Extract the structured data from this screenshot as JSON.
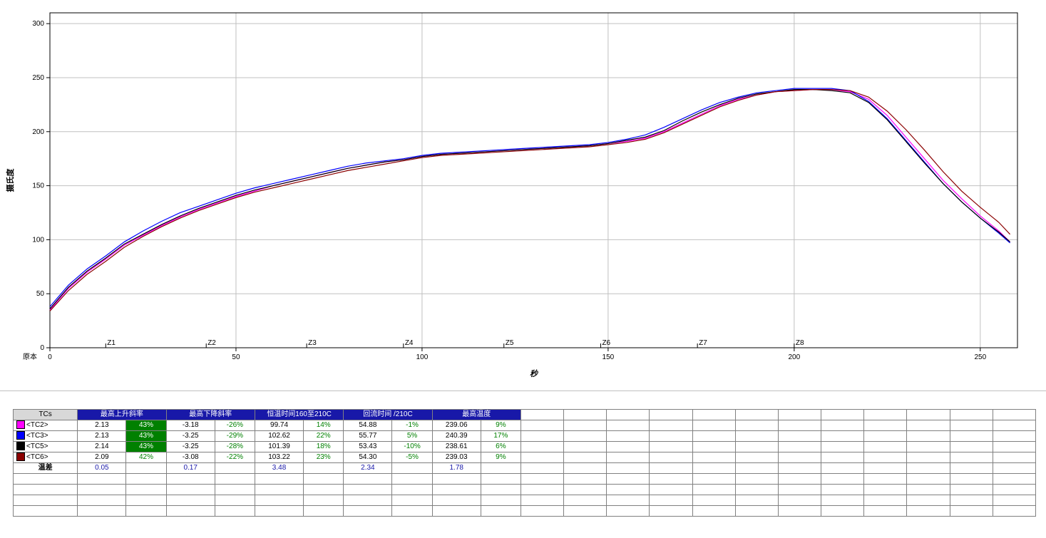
{
  "chart": {
    "type": "line",
    "title": "",
    "background_color": "#ffffff",
    "grid_color": "#c0c0c0",
    "axis_color": "#000000",
    "ylabel": "摄氏度",
    "xlabel": "秒",
    "origin_label": "原本",
    "label_fontsize": 11,
    "tick_fontsize": 10,
    "xlim": [
      0,
      260
    ],
    "ylim": [
      0,
      310
    ],
    "xtick_step": 50,
    "ytick_step": 50,
    "line_width": 1.2,
    "zone_markers": [
      {
        "label": "Z1",
        "x": 15
      },
      {
        "label": "Z2",
        "x": 42
      },
      {
        "label": "Z3",
        "x": 69
      },
      {
        "label": "Z4",
        "x": 95
      },
      {
        "label": "Z5",
        "x": 122
      },
      {
        "label": "Z6",
        "x": 148
      },
      {
        "label": "Z7",
        "x": 174
      },
      {
        "label": "Z8",
        "x": 200
      }
    ],
    "zone_tick_y": 0,
    "series": [
      {
        "name": "<TC2>",
        "color": "#ff00ff",
        "points": [
          [
            0,
            35
          ],
          [
            5,
            55
          ],
          [
            10,
            70
          ],
          [
            15,
            82
          ],
          [
            20,
            95
          ],
          [
            25,
            104
          ],
          [
            30,
            113
          ],
          [
            35,
            121
          ],
          [
            40,
            128
          ],
          [
            45,
            134
          ],
          [
            50,
            140
          ],
          [
            55,
            145
          ],
          [
            60,
            150
          ],
          [
            65,
            154
          ],
          [
            70,
            158
          ],
          [
            75,
            162
          ],
          [
            80,
            166
          ],
          [
            85,
            169
          ],
          [
            90,
            172
          ],
          [
            95,
            174
          ],
          [
            100,
            177
          ],
          [
            105,
            179
          ],
          [
            110,
            180
          ],
          [
            115,
            181
          ],
          [
            120,
            182
          ],
          [
            125,
            183
          ],
          [
            130,
            184
          ],
          [
            135,
            185
          ],
          [
            140,
            186
          ],
          [
            145,
            187
          ],
          [
            150,
            189
          ],
          [
            155,
            191
          ],
          [
            160,
            194
          ],
          [
            165,
            200
          ],
          [
            170,
            208
          ],
          [
            175,
            216
          ],
          [
            180,
            224
          ],
          [
            185,
            230
          ],
          [
            190,
            234
          ],
          [
            195,
            237
          ],
          [
            200,
            238
          ],
          [
            205,
            239
          ],
          [
            210,
            239
          ],
          [
            215,
            237
          ],
          [
            220,
            230
          ],
          [
            225,
            215
          ],
          [
            230,
            195
          ],
          [
            235,
            175
          ],
          [
            240,
            155
          ],
          [
            245,
            138
          ],
          [
            250,
            122
          ],
          [
            255,
            108
          ],
          [
            258,
            98
          ]
        ]
      },
      {
        "name": "<TC3>",
        "color": "#0000ff",
        "points": [
          [
            0,
            38
          ],
          [
            5,
            58
          ],
          [
            10,
            73
          ],
          [
            15,
            85
          ],
          [
            20,
            98
          ],
          [
            25,
            108
          ],
          [
            30,
            117
          ],
          [
            35,
            125
          ],
          [
            40,
            131
          ],
          [
            45,
            137
          ],
          [
            50,
            143
          ],
          [
            55,
            148
          ],
          [
            60,
            152
          ],
          [
            65,
            156
          ],
          [
            70,
            160
          ],
          [
            75,
            164
          ],
          [
            80,
            168
          ],
          [
            85,
            171
          ],
          [
            90,
            173
          ],
          [
            95,
            175
          ],
          [
            100,
            178
          ],
          [
            105,
            180
          ],
          [
            110,
            181
          ],
          [
            115,
            182
          ],
          [
            120,
            183
          ],
          [
            125,
            184
          ],
          [
            130,
            185
          ],
          [
            135,
            186
          ],
          [
            140,
            187
          ],
          [
            145,
            188
          ],
          [
            150,
            190
          ],
          [
            155,
            193
          ],
          [
            160,
            197
          ],
          [
            165,
            204
          ],
          [
            170,
            212
          ],
          [
            175,
            220
          ],
          [
            180,
            227
          ],
          [
            185,
            232
          ],
          [
            190,
            236
          ],
          [
            195,
            238
          ],
          [
            200,
            240
          ],
          [
            205,
            240
          ],
          [
            210,
            240
          ],
          [
            215,
            238
          ],
          [
            220,
            228
          ],
          [
            225,
            212
          ],
          [
            230,
            192
          ],
          [
            235,
            172
          ],
          [
            240,
            152
          ],
          [
            245,
            135
          ],
          [
            250,
            120
          ],
          [
            255,
            106
          ],
          [
            258,
            97
          ]
        ]
      },
      {
        "name": "<TC5>",
        "color": "#000000",
        "points": [
          [
            0,
            36
          ],
          [
            5,
            56
          ],
          [
            10,
            71
          ],
          [
            15,
            83
          ],
          [
            20,
            96
          ],
          [
            25,
            105
          ],
          [
            30,
            114
          ],
          [
            35,
            122
          ],
          [
            40,
            129
          ],
          [
            45,
            135
          ],
          [
            50,
            141
          ],
          [
            55,
            146
          ],
          [
            60,
            150
          ],
          [
            65,
            154
          ],
          [
            70,
            158
          ],
          [
            75,
            162
          ],
          [
            80,
            166
          ],
          [
            85,
            169
          ],
          [
            90,
            172
          ],
          [
            95,
            174
          ],
          [
            100,
            177
          ],
          [
            105,
            179
          ],
          [
            110,
            180
          ],
          [
            115,
            181
          ],
          [
            120,
            182
          ],
          [
            125,
            183
          ],
          [
            130,
            184
          ],
          [
            135,
            185
          ],
          [
            140,
            186
          ],
          [
            145,
            187
          ],
          [
            150,
            189
          ],
          [
            155,
            192
          ],
          [
            160,
            195
          ],
          [
            165,
            201
          ],
          [
            170,
            210
          ],
          [
            175,
            218
          ],
          [
            180,
            225
          ],
          [
            185,
            231
          ],
          [
            190,
            235
          ],
          [
            195,
            237
          ],
          [
            200,
            239
          ],
          [
            205,
            239
          ],
          [
            210,
            238
          ],
          [
            215,
            236
          ],
          [
            220,
            227
          ],
          [
            225,
            211
          ],
          [
            230,
            191
          ],
          [
            235,
            171
          ],
          [
            240,
            152
          ],
          [
            245,
            135
          ],
          [
            250,
            120
          ],
          [
            255,
            107
          ],
          [
            258,
            98
          ]
        ]
      },
      {
        "name": "<TC6>",
        "color": "#8b0000",
        "points": [
          [
            0,
            34
          ],
          [
            5,
            53
          ],
          [
            10,
            68
          ],
          [
            15,
            80
          ],
          [
            20,
            93
          ],
          [
            25,
            103
          ],
          [
            30,
            112
          ],
          [
            35,
            120
          ],
          [
            40,
            127
          ],
          [
            45,
            133
          ],
          [
            50,
            139
          ],
          [
            55,
            144
          ],
          [
            60,
            148
          ],
          [
            65,
            152
          ],
          [
            70,
            156
          ],
          [
            75,
            160
          ],
          [
            80,
            164
          ],
          [
            85,
            167
          ],
          [
            90,
            170
          ],
          [
            95,
            173
          ],
          [
            100,
            176
          ],
          [
            105,
            178
          ],
          [
            110,
            179
          ],
          [
            115,
            180
          ],
          [
            120,
            181
          ],
          [
            125,
            182
          ],
          [
            130,
            183
          ],
          [
            135,
            184
          ],
          [
            140,
            185
          ],
          [
            145,
            186
          ],
          [
            150,
            188
          ],
          [
            155,
            190
          ],
          [
            160,
            193
          ],
          [
            165,
            199
          ],
          [
            170,
            207
          ],
          [
            175,
            215
          ],
          [
            180,
            223
          ],
          [
            185,
            229
          ],
          [
            190,
            234
          ],
          [
            195,
            237
          ],
          [
            200,
            238
          ],
          [
            205,
            239
          ],
          [
            210,
            239
          ],
          [
            215,
            238
          ],
          [
            220,
            232
          ],
          [
            225,
            219
          ],
          [
            230,
            202
          ],
          [
            235,
            183
          ],
          [
            240,
            163
          ],
          [
            245,
            145
          ],
          [
            250,
            130
          ],
          [
            255,
            116
          ],
          [
            258,
            105
          ]
        ]
      }
    ]
  },
  "table": {
    "header": {
      "tcs": "TCs",
      "cols": [
        "最高上升斜率",
        "最高下降斜率",
        "恒温时间160至210C",
        "回流时间 /210C",
        "最高温度"
      ]
    },
    "rows": [
      {
        "swatch": "#ff00ff",
        "name": "<TC2>",
        "cells": [
          [
            "2.13",
            "43%",
            "hi"
          ],
          [
            "-3.18",
            "-26%",
            "g"
          ],
          [
            "99.74",
            "14%",
            "g"
          ],
          [
            "54.88",
            "-1%",
            "g"
          ],
          [
            "239.06",
            "9%",
            "g"
          ]
        ]
      },
      {
        "swatch": "#0000ff",
        "name": "<TC3>",
        "cells": [
          [
            "2.13",
            "43%",
            "hi"
          ],
          [
            "-3.25",
            "-29%",
            "g"
          ],
          [
            "102.62",
            "22%",
            "g"
          ],
          [
            "55.77",
            "5%",
            "g"
          ],
          [
            "240.39",
            "17%",
            "g"
          ]
        ]
      },
      {
        "swatch": "#000000",
        "name": "<TC5>",
        "cells": [
          [
            "2.14",
            "43%",
            "hi"
          ],
          [
            "-3.25",
            "-28%",
            "g"
          ],
          [
            "101.39",
            "18%",
            "g"
          ],
          [
            "53.43",
            "-10%",
            "g"
          ],
          [
            "238.61",
            "6%",
            "g"
          ]
        ]
      },
      {
        "swatch": "#8b0000",
        "name": "<TC6>",
        "cells": [
          [
            "2.09",
            "42%",
            "g"
          ],
          [
            "-3.08",
            "-22%",
            "g"
          ],
          [
            "103.22",
            "23%",
            "g"
          ],
          [
            "54.30",
            "-5%",
            "g"
          ],
          [
            "239.03",
            "9%",
            "g"
          ]
        ]
      }
    ],
    "delta_row": {
      "label": "温差",
      "values": [
        "0.05",
        "0.17",
        "3.48",
        "2.34",
        "1.78"
      ]
    },
    "empty_rows": 4,
    "extra_cols": 12
  }
}
